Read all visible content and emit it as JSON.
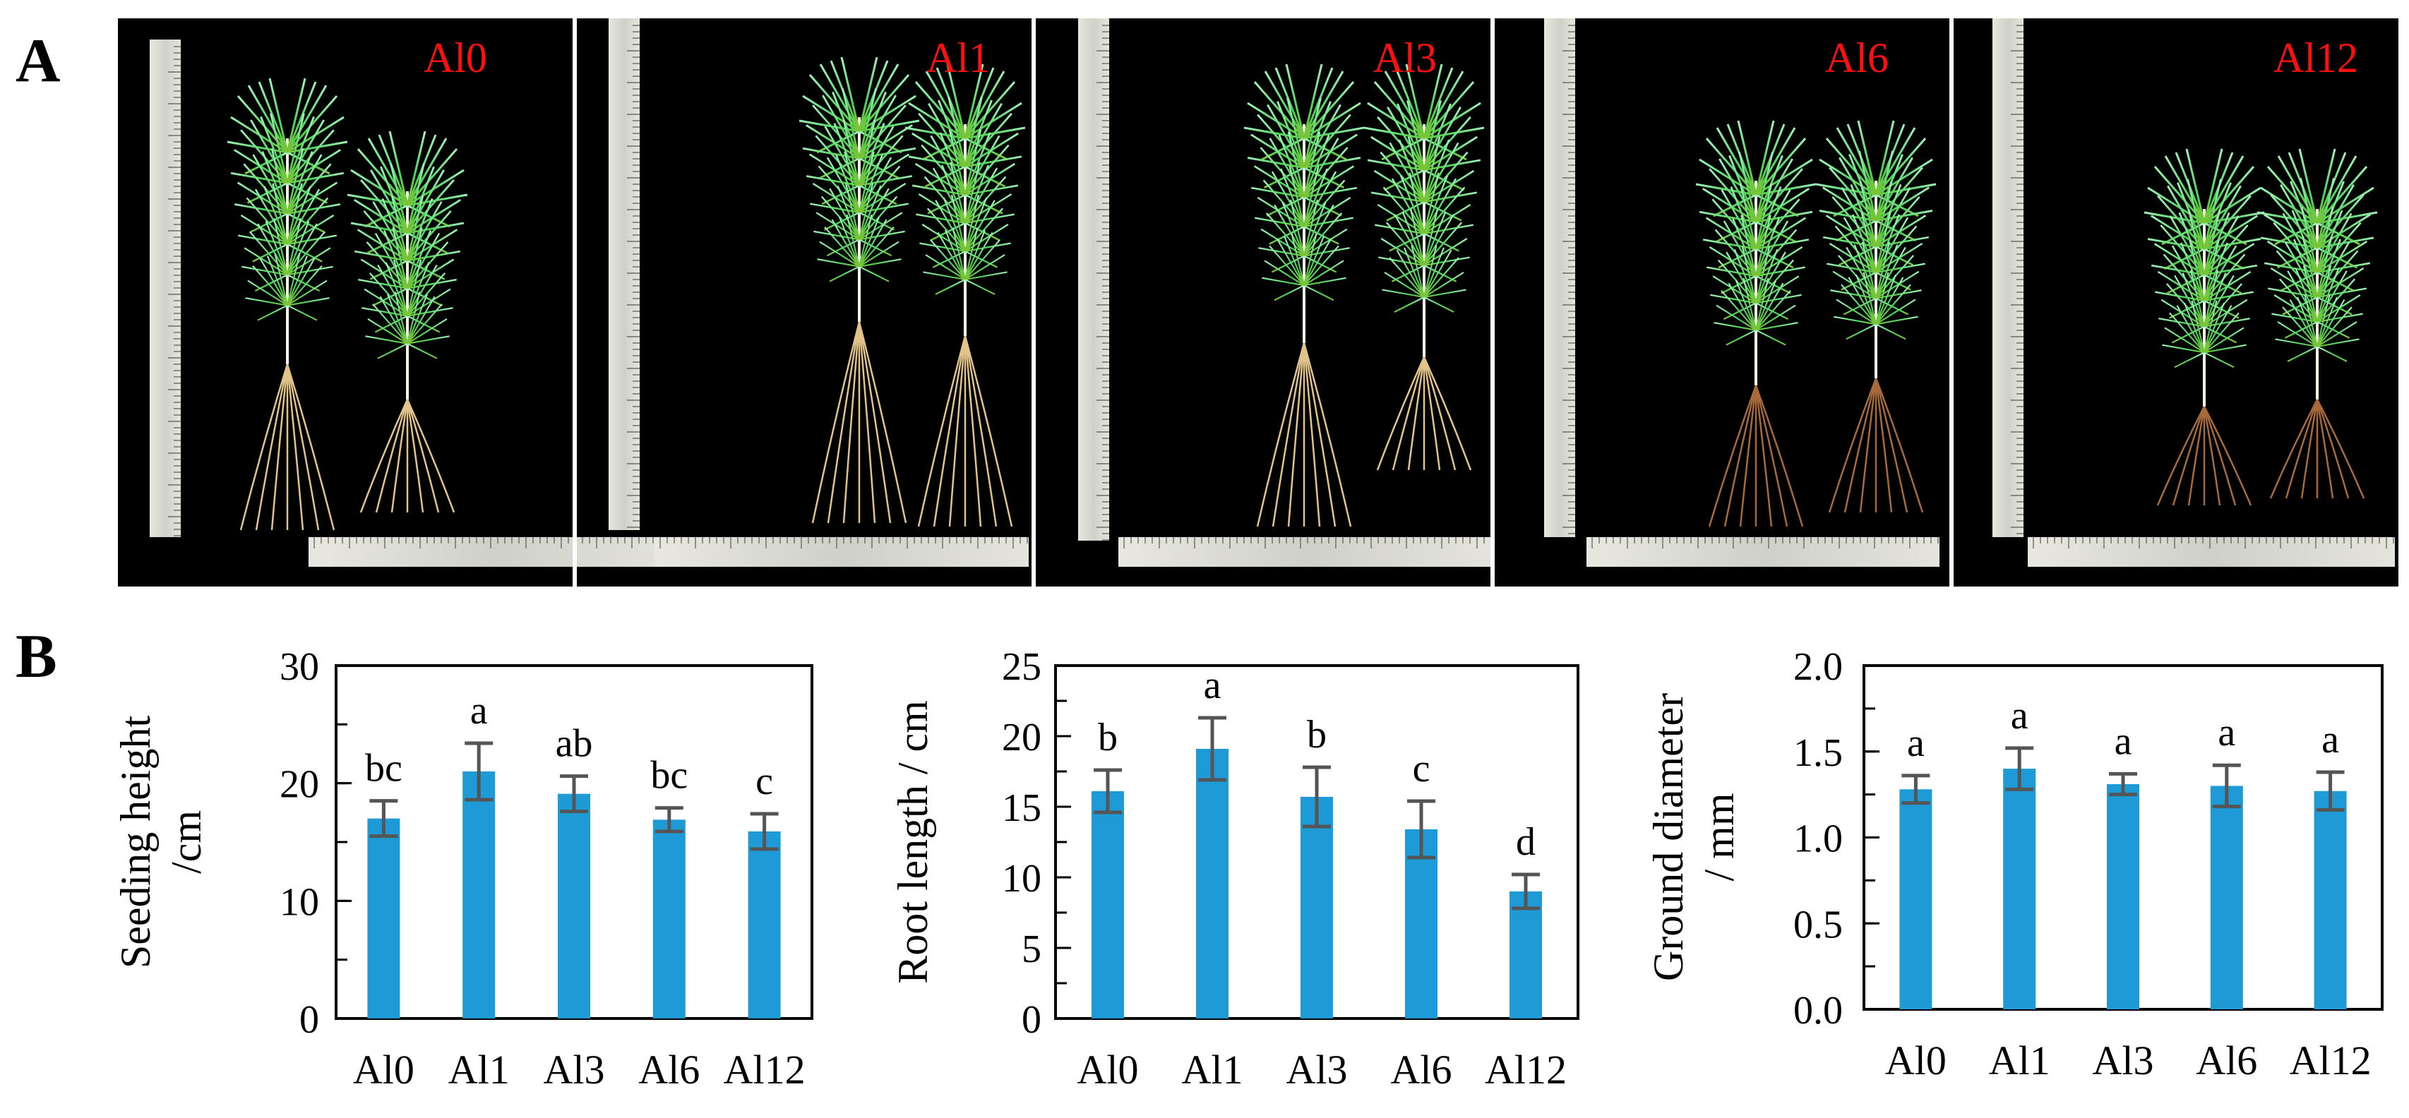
{
  "figure": {
    "panel_a_letter": "A",
    "panel_b_letter": "B"
  },
  "photos": [
    {
      "label": "Al0"
    },
    {
      "label": "Al1"
    },
    {
      "label": "Al3"
    },
    {
      "label": "Al6"
    },
    {
      "label": "Al12"
    }
  ],
  "colors": {
    "bar": "#1e9ad6",
    "error_bar": "#555555",
    "photo_label": "#ff1010",
    "photo_bg": "#000000"
  },
  "chart_data": [
    {
      "type": "bar",
      "categories": [
        "Al0",
        "Al1",
        "Al3",
        "Al6",
        "Al12"
      ],
      "values": [
        17.0,
        21.0,
        19.1,
        16.9,
        15.9
      ],
      "errors": [
        1.5,
        2.4,
        1.5,
        1.0,
        1.5
      ],
      "sig_letters": [
        "bc",
        "a",
        "ab",
        "bc",
        "c"
      ],
      "ylabel_lines": [
        "Seeding height",
        "/cm"
      ],
      "ylim": [
        0,
        30
      ],
      "yticks": [
        0,
        10,
        20,
        30
      ],
      "ytick_labels": [
        "0",
        "10",
        "20",
        "30"
      ],
      "y_minor_step": 5
    },
    {
      "type": "bar",
      "categories": [
        "Al0",
        "Al1",
        "Al3",
        "Al6",
        "Al12"
      ],
      "values": [
        16.1,
        19.1,
        15.7,
        13.4,
        9.0
      ],
      "errors": [
        1.5,
        2.2,
        2.1,
        2.0,
        1.2
      ],
      "sig_letters": [
        "b",
        "a",
        "b",
        "c",
        "d"
      ],
      "ylabel_lines": [
        "Root length / cm"
      ],
      "ylim": [
        0,
        25
      ],
      "yticks": [
        0,
        5,
        10,
        15,
        20,
        25
      ],
      "ytick_labels": [
        "0",
        "5",
        "10",
        "15",
        "20",
        "25"
      ],
      "y_minor_step": 2.5
    },
    {
      "type": "bar",
      "categories": [
        "Al0",
        "Al1",
        "Al3",
        "Al6",
        "Al12"
      ],
      "values": [
        1.28,
        1.4,
        1.31,
        1.3,
        1.27
      ],
      "errors": [
        0.08,
        0.12,
        0.06,
        0.12,
        0.11
      ],
      "sig_letters": [
        "a",
        "a",
        "a",
        "a",
        "a"
      ],
      "ylabel_lines": [
        "Ground diameter",
        "/ mm"
      ],
      "ylim": [
        0,
        2.0
      ],
      "yticks": [
        0,
        0.5,
        1.0,
        1.5,
        2.0
      ],
      "ytick_labels": [
        "0.0",
        "0.5",
        "1.0",
        "1.5",
        "2.0"
      ],
      "y_minor_step": 0.25
    }
  ]
}
